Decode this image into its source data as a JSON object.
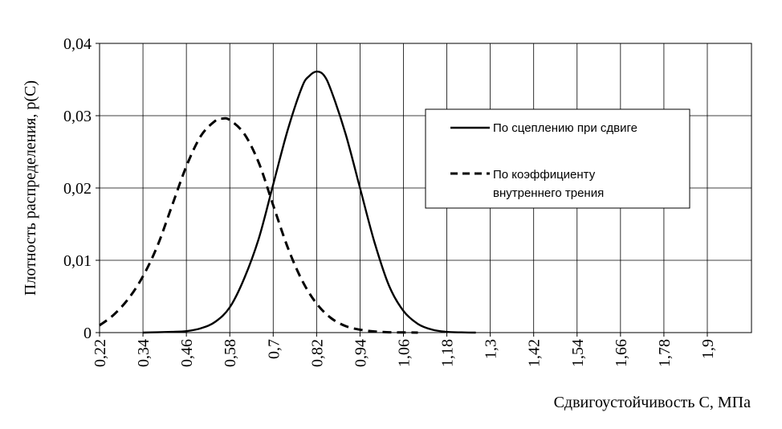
{
  "chart_data": {
    "type": "line",
    "title": "",
    "xlabel": "Сдвигоустойчивость C, МПа",
    "ylabel": "Плотность распределения, p(C)",
    "xlim": [
      0.22,
      1.78
    ],
    "ylim": [
      0,
      0.04
    ],
    "x_ticks": [
      "0,22",
      "0,34",
      "0,46",
      "0,58",
      "0,7",
      "0,82",
      "0,94",
      "1,06",
      "1,18",
      "1,3",
      "1,42",
      "1,54",
      "1,66",
      "1,78",
      "1,9"
    ],
    "y_ticks": [
      "0",
      "0,01",
      "0,02",
      "0,03",
      "0,04"
    ],
    "grid": true,
    "legend_position": "right",
    "series": [
      {
        "name": "По сцеплению при сдвиге",
        "style": "solid",
        "color": "#000000",
        "x": [
          0.34,
          0.38,
          0.42,
          0.46,
          0.5,
          0.54,
          0.58,
          0.62,
          0.66,
          0.7,
          0.74,
          0.78,
          0.8,
          0.82,
          0.84,
          0.86,
          0.9,
          0.94,
          0.98,
          1.02,
          1.06,
          1.1,
          1.14,
          1.18,
          1.22,
          1.26
        ],
        "y": [
          0.0,
          5e-05,
          0.0001,
          0.0002,
          0.0006,
          0.0015,
          0.0035,
          0.0075,
          0.013,
          0.0205,
          0.028,
          0.034,
          0.0355,
          0.0361,
          0.0356,
          0.0335,
          0.0275,
          0.02,
          0.0125,
          0.0065,
          0.003,
          0.0012,
          0.0004,
          0.0001,
          3e-05,
          0.0
        ]
      },
      {
        "name": "По коэффициенту внутреннего трения",
        "style": "dashed",
        "color": "#000000",
        "x": [
          0.22,
          0.26,
          0.3,
          0.34,
          0.38,
          0.42,
          0.46,
          0.5,
          0.54,
          0.56,
          0.58,
          0.62,
          0.66,
          0.7,
          0.74,
          0.78,
          0.82,
          0.86,
          0.9,
          0.94,
          0.98,
          1.02,
          1.06,
          1.1
        ],
        "y": [
          0.001,
          0.0025,
          0.0047,
          0.0078,
          0.012,
          0.0175,
          0.023,
          0.0272,
          0.0293,
          0.0296,
          0.0294,
          0.0275,
          0.0235,
          0.0176,
          0.0118,
          0.0072,
          0.004,
          0.002,
          0.0009,
          0.0004,
          0.00015,
          5e-05,
          2e-05,
          0.0
        ]
      }
    ]
  }
}
